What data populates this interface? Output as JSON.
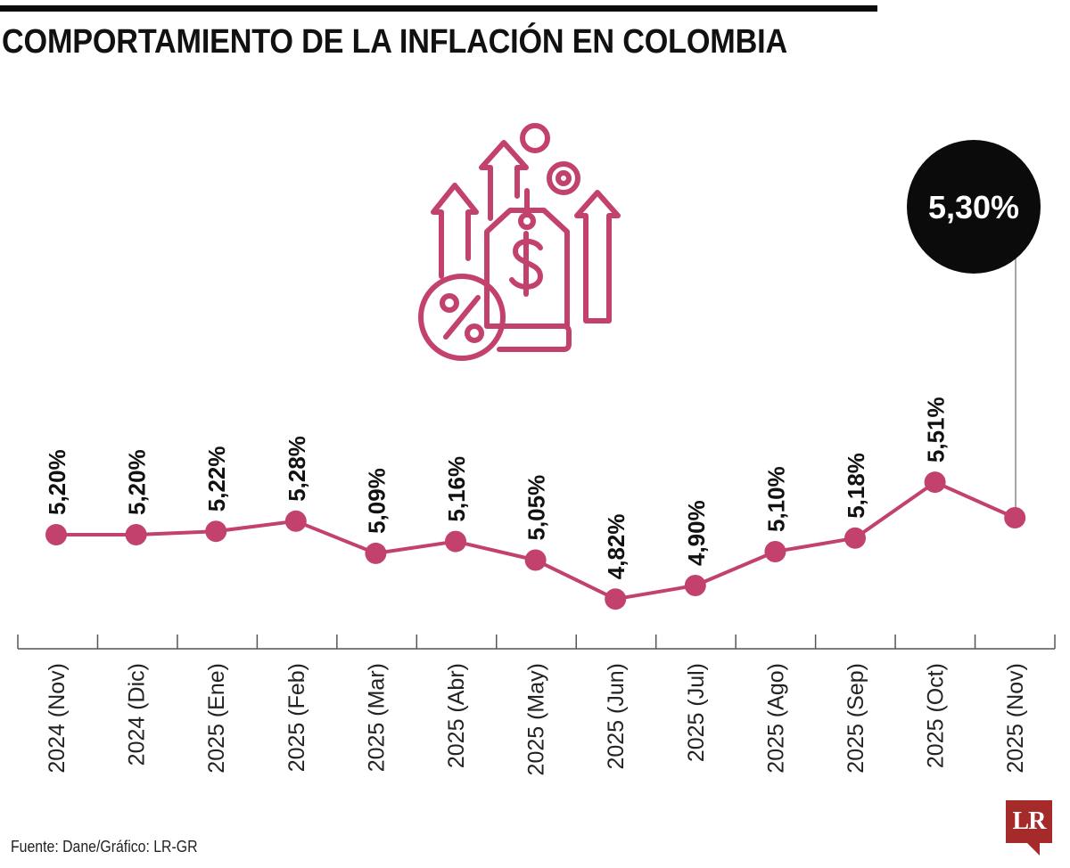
{
  "title": "COMPORTAMIENTO DE LA INFLACIÓN EN COLOMBIA",
  "source": "Fuente: Dane/Gráfico: LR-GR",
  "logo": "LR",
  "highlight_label": "5,30%",
  "icon": "inflation-price-tag-icon",
  "colors": {
    "line": "#c2416d",
    "bubble": "#0b0b0b",
    "logo": "#a52a2a",
    "text": "#111111"
  },
  "chart_data": {
    "type": "line",
    "title": "COMPORTAMIENTO DE LA INFLACIÓN EN COLOMBIA",
    "xlabel": "",
    "ylabel": "",
    "categories": [
      "2024 (Nov)",
      "2024 (Dic)",
      "2025 (Ene)",
      "2025 (Feb)",
      "2025 (Mar)",
      "2025 (Abr)",
      "2025 (May)",
      "2025 (Jun)",
      "2025 (Jul)",
      "2025 (Ago)",
      "2025 (Sep)",
      "2025 (Oct)",
      "2025 (Nov)"
    ],
    "values": [
      5.2,
      5.2,
      5.22,
      5.28,
      5.09,
      5.16,
      5.05,
      4.82,
      4.9,
      5.1,
      5.18,
      5.51,
      5.3
    ],
    "value_labels": [
      "5,20%",
      "5,20%",
      "5,22%",
      "5,28%",
      "5,09%",
      "5,16%",
      "5,05%",
      "4,82%",
      "4,90%",
      "5,10%",
      "5,18%",
      "5,51%",
      ""
    ],
    "grid": false,
    "legend": "none"
  }
}
